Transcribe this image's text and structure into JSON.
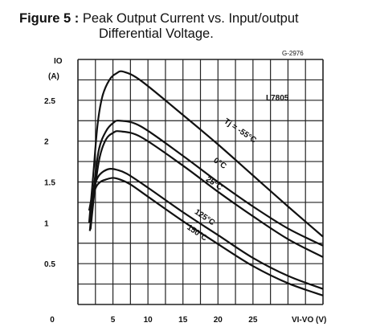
{
  "caption": {
    "label": "Figure 5 :",
    "text_line1": "Peak Output Current vs. Input/output",
    "text_line2": "Differential Voltage."
  },
  "chart_data": {
    "type": "line",
    "title": "Peak Output Current vs. Input/output Differential Voltage.",
    "figure_code": "G-2976",
    "part_label": "L7805",
    "ylabel_symbol": "IO",
    "ylabel_unit": "(A)",
    "xlabel": "VI-VO (V)",
    "xlim": [
      0,
      35
    ],
    "ylim": [
      0,
      3
    ],
    "x_tick_labels": [
      "0",
      "5",
      "10",
      "15",
      "20",
      "25"
    ],
    "x_ticks": [
      0,
      5,
      10,
      15,
      20,
      25
    ],
    "y_tick_labels": [
      "0.5",
      "1",
      "1.5",
      "2",
      "2.5"
    ],
    "y_ticks": [
      0.5,
      1,
      1.5,
      2,
      2.5
    ],
    "grid": true,
    "series": [
      {
        "name": "Tj = -55°C",
        "x": [
          1.6,
          2.2,
          2.8,
          3.5,
          4.5,
          5.5,
          6.5,
          9,
          15,
          20,
          25,
          30,
          35
        ],
        "y": [
          1.0,
          1.6,
          2.2,
          2.55,
          2.75,
          2.83,
          2.85,
          2.74,
          2.32,
          1.96,
          1.58,
          1.2,
          0.83
        ]
      },
      {
        "name": "0°C",
        "x": [
          1.7,
          2.3,
          3.0,
          4.0,
          5.0,
          6.0,
          9,
          15,
          20,
          25,
          30,
          35
        ],
        "y": [
          0.9,
          1.45,
          1.9,
          2.12,
          2.22,
          2.25,
          2.18,
          1.82,
          1.5,
          1.2,
          0.93,
          0.72
        ]
      },
      {
        "name": "25°C",
        "x": [
          1.8,
          2.4,
          3.1,
          4.0,
          5.0,
          6.0,
          9,
          15,
          20,
          25,
          30,
          35
        ],
        "y": [
          0.92,
          1.4,
          1.8,
          2.02,
          2.1,
          2.12,
          2.05,
          1.7,
          1.38,
          1.08,
          0.8,
          0.58
        ]
      },
      {
        "name": "125°C",
        "x": [
          1.6,
          2.2,
          2.8,
          3.5,
          4.5,
          5.5,
          7,
          10,
          15,
          20,
          25,
          30,
          35
        ],
        "y": [
          1.15,
          1.4,
          1.55,
          1.62,
          1.66,
          1.65,
          1.6,
          1.43,
          1.13,
          0.85,
          0.57,
          0.35,
          0.19
        ]
      },
      {
        "name": "150°C",
        "x": [
          1.8,
          2.5,
          3.2,
          4.0,
          5.0,
          6.0,
          7.5,
          10,
          15,
          20,
          25,
          30,
          35
        ],
        "y": [
          1.2,
          1.42,
          1.5,
          1.53,
          1.55,
          1.53,
          1.47,
          1.32,
          1.02,
          0.74,
          0.47,
          0.26,
          0.11
        ]
      }
    ]
  }
}
